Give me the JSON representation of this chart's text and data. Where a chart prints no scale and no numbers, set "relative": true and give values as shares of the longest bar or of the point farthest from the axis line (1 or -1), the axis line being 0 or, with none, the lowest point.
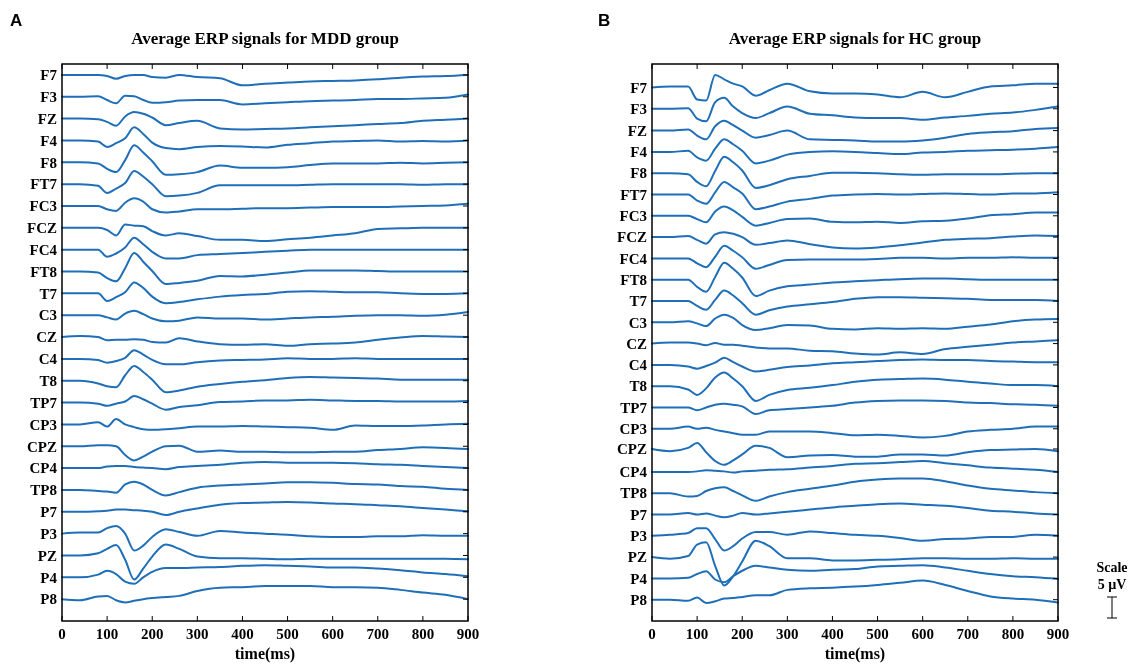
{
  "chart_data": [
    {
      "type": "line",
      "relative": true,
      "title": "Average ERP signals for MDD group",
      "xlabel": "time(ms)",
      "annotations": [
        "A"
      ],
      "x": [
        0,
        40,
        80,
        100,
        120,
        140,
        160,
        180,
        200,
        230,
        260,
        300,
        350,
        400,
        450,
        500,
        550,
        600,
        650,
        700,
        750,
        800,
        850,
        900
      ],
      "xlim": [
        0,
        900
      ],
      "xticks": [
        0,
        100,
        200,
        300,
        400,
        500,
        600,
        700,
        800,
        900
      ],
      "series": [
        {
          "name": "F7",
          "color": "#1f6fb8",
          "values": [
            1,
            1,
            1,
            0.998,
            0.993,
            0.998,
            1,
            1,
            0.996,
            0.995,
            1,
            0.996,
            0.994,
            0.981,
            0.984,
            0.986,
            0.988,
            0.989,
            0.99,
            0.992,
            0.995,
            0.997,
            0.998,
            1
          ]
        },
        {
          "name": "F3",
          "color": "#1f6fb8",
          "values": [
            0.96,
            0.96,
            0.961,
            0.954,
            0.948,
            0.962,
            0.961,
            0.954,
            0.949,
            0.95,
            0.953,
            0.954,
            0.954,
            0.946,
            0.948,
            0.95,
            0.952,
            0.953,
            0.954,
            0.956,
            0.956,
            0.957,
            0.958,
            0.964
          ]
        },
        {
          "name": "FZ",
          "color": "#1f6fb8",
          "values": [
            0.92,
            0.92,
            0.919,
            0.914,
            0.907,
            0.924,
            0.932,
            0.929,
            0.922,
            0.908,
            0.912,
            0.916,
            0.902,
            0.9,
            0.901,
            0.902,
            0.904,
            0.906,
            0.908,
            0.91,
            0.912,
            0.916,
            0.918,
            0.92
          ]
        },
        {
          "name": "F4",
          "color": "#1f6fb8",
          "values": [
            0.88,
            0.88,
            0.878,
            0.868,
            0.875,
            0.884,
            0.904,
            0.892,
            0.876,
            0.866,
            0.864,
            0.868,
            0.87,
            0.869,
            0.867,
            0.872,
            0.875,
            0.878,
            0.879,
            0.88,
            0.878,
            0.879,
            0.878,
            0.88
          ]
        },
        {
          "name": "F8",
          "color": "#1f6fb8",
          "values": [
            0.84,
            0.84,
            0.838,
            0.828,
            0.822,
            0.844,
            0.871,
            0.858,
            0.842,
            0.817,
            0.818,
            0.822,
            0.834,
            0.83,
            0.83,
            0.831,
            0.835,
            0.838,
            0.838,
            0.838,
            0.839,
            0.838,
            0.839,
            0.84
          ]
        },
        {
          "name": "FT7",
          "color": "#1f6fb8",
          "values": [
            0.8,
            0.8,
            0.797,
            0.784,
            0.792,
            0.802,
            0.824,
            0.814,
            0.8,
            0.778,
            0.779,
            0.784,
            0.798,
            0.798,
            0.798,
            0.798,
            0.799,
            0.8,
            0.8,
            0.8,
            0.8,
            0.799,
            0.8,
            0.8
          ]
        },
        {
          "name": "FC3",
          "color": "#1f6fb8",
          "values": [
            0.76,
            0.76,
            0.76,
            0.754,
            0.751,
            0.766,
            0.774,
            0.768,
            0.754,
            0.748,
            0.75,
            0.754,
            0.754,
            0.755,
            0.756,
            0.756,
            0.757,
            0.758,
            0.758,
            0.758,
            0.759,
            0.76,
            0.761,
            0.764
          ]
        },
        {
          "name": "FCZ",
          "color": "#1f6fb8",
          "values": [
            0.72,
            0.72,
            0.72,
            0.716,
            0.706,
            0.726,
            0.724,
            0.723,
            0.714,
            0.706,
            0.71,
            0.705,
            0.698,
            0.698,
            0.696,
            0.699,
            0.702,
            0.706,
            0.71,
            0.718,
            0.719,
            0.72,
            0.72,
            0.72
          ]
        },
        {
          "name": "FC4",
          "color": "#1f6fb8",
          "values": [
            0.68,
            0.68,
            0.68,
            0.667,
            0.673,
            0.684,
            0.702,
            0.69,
            0.676,
            0.664,
            0.664,
            0.67,
            0.672,
            0.674,
            0.676,
            0.678,
            0.68,
            0.68,
            0.68,
            0.68,
            0.68,
            0.68,
            0.68,
            0.68
          ]
        },
        {
          "name": "FT8",
          "color": "#1f6fb8",
          "values": [
            0.64,
            0.64,
            0.638,
            0.628,
            0.622,
            0.646,
            0.674,
            0.658,
            0.641,
            0.617,
            0.619,
            0.623,
            0.632,
            0.631,
            0.634,
            0.638,
            0.642,
            0.642,
            0.642,
            0.641,
            0.64,
            0.64,
            0.64,
            0.64
          ]
        },
        {
          "name": "T7",
          "color": "#1f6fb8",
          "values": [
            0.6,
            0.6,
            0.6,
            0.586,
            0.593,
            0.602,
            0.62,
            0.61,
            0.594,
            0.582,
            0.584,
            0.589,
            0.594,
            0.597,
            0.599,
            0.603,
            0.604,
            0.603,
            0.602,
            0.602,
            0.6,
            0.599,
            0.599,
            0.6
          ]
        },
        {
          "name": "C3",
          "color": "#1f6fb8",
          "values": [
            0.56,
            0.56,
            0.56,
            0.556,
            0.552,
            0.563,
            0.568,
            0.562,
            0.554,
            0.549,
            0.55,
            0.556,
            0.554,
            0.554,
            0.552,
            0.554,
            0.556,
            0.557,
            0.559,
            0.56,
            0.56,
            0.559,
            0.561,
            0.566
          ]
        },
        {
          "name": "CZ",
          "color": "#1f6fb8",
          "values": [
            0.52,
            0.522,
            0.52,
            0.514,
            0.515,
            0.515,
            0.516,
            0.515,
            0.511,
            0.51,
            0.518,
            0.512,
            0.507,
            0.506,
            0.507,
            0.504,
            0.507,
            0.508,
            0.51,
            0.515,
            0.519,
            0.522,
            0.521,
            0.52
          ]
        },
        {
          "name": "C4",
          "color": "#1f6fb8",
          "values": [
            0.48,
            0.48,
            0.478,
            0.473,
            0.476,
            0.482,
            0.496,
            0.488,
            0.478,
            0.47,
            0.47,
            0.474,
            0.477,
            0.478,
            0.479,
            0.481,
            0.48,
            0.48,
            0.481,
            0.48,
            0.48,
            0.48,
            0.48,
            0.48
          ]
        },
        {
          "name": "T8",
          "color": "#1f6fb8",
          "values": [
            0.44,
            0.44,
            0.435,
            0.43,
            0.428,
            0.45,
            0.467,
            0.456,
            0.442,
            0.419,
            0.422,
            0.429,
            0.434,
            0.438,
            0.441,
            0.445,
            0.447,
            0.446,
            0.445,
            0.444,
            0.442,
            0.442,
            0.442,
            0.442
          ]
        },
        {
          "name": "TP7",
          "color": "#1f6fb8",
          "values": [
            0.4,
            0.4,
            0.398,
            0.394,
            0.398,
            0.402,
            0.412,
            0.406,
            0.398,
            0.387,
            0.392,
            0.395,
            0.401,
            0.402,
            0.404,
            0.404,
            0.405,
            0.404,
            0.403,
            0.403,
            0.402,
            0.402,
            0.402,
            0.403
          ]
        },
        {
          "name": "CP3",
          "color": "#1f6fb8",
          "values": [
            0.36,
            0.36,
            0.364,
            0.356,
            0.37,
            0.36,
            0.355,
            0.351,
            0.35,
            0.351,
            0.353,
            0.356,
            0.356,
            0.357,
            0.356,
            0.355,
            0.354,
            0.35,
            0.358,
            0.357,
            0.357,
            0.358,
            0.36,
            0.361
          ]
        },
        {
          "name": "CPZ",
          "color": "#1f6fb8",
          "values": [
            0.32,
            0.32,
            0.322,
            0.322,
            0.32,
            0.304,
            0.294,
            0.301,
            0.31,
            0.32,
            0.321,
            0.31,
            0.312,
            0.31,
            0.31,
            0.309,
            0.309,
            0.31,
            0.31,
            0.313,
            0.315,
            0.318,
            0.317,
            0.315
          ]
        },
        {
          "name": "CP4",
          "color": "#1f6fb8",
          "values": [
            0.28,
            0.28,
            0.28,
            0.283,
            0.284,
            0.284,
            0.282,
            0.281,
            0.28,
            0.278,
            0.282,
            0.284,
            0.286,
            0.29,
            0.291,
            0.29,
            0.29,
            0.29,
            0.289,
            0.287,
            0.286,
            0.284,
            0.282,
            0.28
          ]
        },
        {
          "name": "TP8",
          "color": "#1f6fb8",
          "values": [
            0.24,
            0.24,
            0.238,
            0.237,
            0.235,
            0.25,
            0.255,
            0.25,
            0.24,
            0.23,
            0.236,
            0.244,
            0.248,
            0.25,
            0.252,
            0.254,
            0.254,
            0.253,
            0.251,
            0.25,
            0.247,
            0.246,
            0.242,
            0.24
          ]
        },
        {
          "name": "P7",
          "color": "#1f6fb8",
          "values": [
            0.2,
            0.2,
            0.201,
            0.202,
            0.204,
            0.204,
            0.203,
            0.202,
            0.2,
            0.194,
            0.2,
            0.206,
            0.213,
            0.216,
            0.217,
            0.218,
            0.217,
            0.215,
            0.214,
            0.212,
            0.21,
            0.207,
            0.204,
            0.201
          ]
        },
        {
          "name": "P3",
          "color": "#1f6fb8",
          "values": [
            0.16,
            0.162,
            0.162,
            0.17,
            0.174,
            0.16,
            0.129,
            0.138,
            0.154,
            0.168,
            0.163,
            0.156,
            0.165,
            0.162,
            0.16,
            0.158,
            0.155,
            0.154,
            0.154,
            0.155,
            0.155,
            0.157,
            0.156,
            0.156
          ]
        },
        {
          "name": "PZ",
          "color": "#1f6fb8",
          "values": [
            0.12,
            0.12,
            0.124,
            0.132,
            0.139,
            0.112,
            0.076,
            0.096,
            0.118,
            0.14,
            0.132,
            0.118,
            0.115,
            0.115,
            0.114,
            0.113,
            0.114,
            0.114,
            0.114,
            0.114,
            0.114,
            0.114,
            0.114,
            0.113
          ]
        },
        {
          "name": "P4",
          "color": "#1f6fb8",
          "values": [
            0.08,
            0.08,
            0.085,
            0.092,
            0.086,
            0.072,
            0.068,
            0.08,
            0.09,
            0.097,
            0.097,
            0.098,
            0.099,
            0.101,
            0.102,
            0.101,
            0.1,
            0.098,
            0.098,
            0.096,
            0.093,
            0.089,
            0.086,
            0.082
          ]
        },
        {
          "name": "P8",
          "color": "#1f6fb8",
          "values": [
            0.04,
            0.038,
            0.045,
            0.046,
            0.038,
            0.034,
            0.037,
            0.04,
            0.042,
            0.044,
            0.046,
            0.055,
            0.061,
            0.062,
            0.064,
            0.064,
            0.064,
            0.062,
            0.062,
            0.061,
            0.057,
            0.052,
            0.048,
            0.04
          ]
        }
      ]
    },
    {
      "type": "line",
      "relative": true,
      "title": "Average ERP signals for HC group",
      "xlabel": "time(ms)",
      "annotations": [
        "B",
        "Scale",
        "5 µV"
      ],
      "x": [
        0,
        40,
        80,
        100,
        120,
        140,
        160,
        180,
        200,
        230,
        260,
        300,
        350,
        400,
        450,
        500,
        550,
        600,
        650,
        700,
        750,
        800,
        850,
        900
      ],
      "xlim": [
        0,
        900
      ],
      "xticks": [
        0,
        100,
        200,
        300,
        400,
        500,
        600,
        700,
        800,
        900
      ],
      "series": [
        {
          "name": "F7",
          "color": "#1f6fb8",
          "values": [
            0.977,
            0.979,
            0.979,
            0.955,
            0.953,
            1,
            0.992,
            0.984,
            0.979,
            0.962,
            0.972,
            0.984,
            0.97,
            0.966,
            0.966,
            0.964,
            0.959,
            0.969,
            0.959,
            0.969,
            0.979,
            0.981,
            0.984,
            0.984
          ]
        },
        {
          "name": "F3",
          "color": "#1f6fb8",
          "values": [
            0.938,
            0.938,
            0.939,
            0.92,
            0.915,
            0.95,
            0.958,
            0.942,
            0.93,
            0.921,
            0.93,
            0.942,
            0.929,
            0.926,
            0.922,
            0.921,
            0.921,
            0.918,
            0.922,
            0.925,
            0.929,
            0.931,
            0.936,
            0.942
          ]
        },
        {
          "name": "FZ",
          "color": "#1f6fb8",
          "values": [
            0.898,
            0.898,
            0.9,
            0.889,
            0.882,
            0.906,
            0.916,
            0.908,
            0.898,
            0.885,
            0.89,
            0.898,
            0.882,
            0.881,
            0.88,
            0.878,
            0.878,
            0.88,
            0.885,
            0.892,
            0.895,
            0.897,
            0.901,
            0.903
          ]
        },
        {
          "name": "F4",
          "color": "#1f6fb8",
          "values": [
            0.859,
            0.859,
            0.861,
            0.849,
            0.843,
            0.865,
            0.882,
            0.873,
            0.861,
            0.838,
            0.843,
            0.854,
            0.859,
            0.86,
            0.859,
            0.857,
            0.855,
            0.858,
            0.859,
            0.861,
            0.862,
            0.863,
            0.865,
            0.868
          ]
        },
        {
          "name": "F8",
          "color": "#1f6fb8",
          "values": [
            0.82,
            0.82,
            0.818,
            0.804,
            0.796,
            0.824,
            0.85,
            0.84,
            0.825,
            0.793,
            0.798,
            0.809,
            0.815,
            0.821,
            0.821,
            0.82,
            0.818,
            0.817,
            0.818,
            0.818,
            0.818,
            0.819,
            0.82,
            0.82
          ]
        },
        {
          "name": "FT7",
          "color": "#1f6fb8",
          "values": [
            0.781,
            0.781,
            0.781,
            0.77,
            0.764,
            0.785,
            0.804,
            0.794,
            0.783,
            0.754,
            0.759,
            0.768,
            0.773,
            0.779,
            0.781,
            0.782,
            0.781,
            0.782,
            0.783,
            0.782,
            0.781,
            0.783,
            0.783,
            0.785
          ]
        },
        {
          "name": "FC3",
          "color": "#1f6fb8",
          "values": [
            0.742,
            0.742,
            0.742,
            0.736,
            0.73,
            0.75,
            0.759,
            0.752,
            0.74,
            0.724,
            0.729,
            0.736,
            0.737,
            0.731,
            0.73,
            0.731,
            0.729,
            0.732,
            0.733,
            0.737,
            0.743,
            0.745,
            0.748,
            0.748
          ]
        },
        {
          "name": "FCZ",
          "color": "#1f6fb8",
          "values": [
            0.703,
            0.703,
            0.705,
            0.698,
            0.691,
            0.708,
            0.712,
            0.709,
            0.703,
            0.689,
            0.692,
            0.697,
            0.69,
            0.684,
            0.682,
            0.684,
            0.688,
            0.693,
            0.698,
            0.7,
            0.701,
            0.704,
            0.706,
            0.705
          ]
        },
        {
          "name": "FC4",
          "color": "#1f6fb8",
          "values": [
            0.664,
            0.664,
            0.664,
            0.655,
            0.648,
            0.667,
            0.687,
            0.678,
            0.666,
            0.645,
            0.652,
            0.661,
            0.662,
            0.662,
            0.662,
            0.663,
            0.665,
            0.665,
            0.664,
            0.665,
            0.665,
            0.666,
            0.665,
            0.665
          ]
        },
        {
          "name": "FT8",
          "color": "#1f6fb8",
          "values": [
            0.625,
            0.625,
            0.625,
            0.612,
            0.603,
            0.63,
            0.656,
            0.645,
            0.629,
            0.595,
            0.605,
            0.613,
            0.616,
            0.62,
            0.622,
            0.624,
            0.626,
            0.627,
            0.627,
            0.626,
            0.625,
            0.625,
            0.625,
            0.625
          ]
        },
        {
          "name": "T7",
          "color": "#1f6fb8",
          "values": [
            0.586,
            0.586,
            0.586,
            0.577,
            0.57,
            0.588,
            0.605,
            0.596,
            0.582,
            0.561,
            0.569,
            0.576,
            0.58,
            0.584,
            0.59,
            0.593,
            0.593,
            0.592,
            0.591,
            0.59,
            0.588,
            0.588,
            0.588,
            0.586
          ]
        },
        {
          "name": "C3",
          "color": "#1f6fb8",
          "values": [
            0.547,
            0.547,
            0.549,
            0.545,
            0.54,
            0.554,
            0.561,
            0.555,
            0.542,
            0.533,
            0.536,
            0.542,
            0.541,
            0.535,
            0.534,
            0.536,
            0.535,
            0.536,
            0.535,
            0.539,
            0.543,
            0.549,
            0.552,
            0.553
          ]
        },
        {
          "name": "CZ",
          "color": "#1f6fb8",
          "values": [
            0.508,
            0.51,
            0.51,
            0.508,
            0.505,
            0.509,
            0.506,
            0.506,
            0.504,
            0.501,
            0.499,
            0.499,
            0.495,
            0.494,
            0.49,
            0.488,
            0.492,
            0.489,
            0.498,
            0.502,
            0.506,
            0.51,
            0.512,
            0.514
          ]
        },
        {
          "name": "C4",
          "color": "#1f6fb8",
          "values": [
            0.469,
            0.469,
            0.466,
            0.462,
            0.467,
            0.473,
            0.482,
            0.474,
            0.466,
            0.457,
            0.46,
            0.465,
            0.468,
            0.472,
            0.474,
            0.476,
            0.478,
            0.479,
            0.478,
            0.478,
            0.476,
            0.475,
            0.474,
            0.474
          ]
        },
        {
          "name": "T8",
          "color": "#1f6fb8",
          "values": [
            0.43,
            0.43,
            0.424,
            0.414,
            0.426,
            0.446,
            0.455,
            0.444,
            0.43,
            0.403,
            0.414,
            0.423,
            0.427,
            0.432,
            0.438,
            0.442,
            0.443,
            0.444,
            0.442,
            0.438,
            0.435,
            0.432,
            0.432,
            0.43
          ]
        },
        {
          "name": "TP7",
          "color": "#1f6fb8",
          "values": [
            0.391,
            0.391,
            0.391,
            0.386,
            0.391,
            0.396,
            0.398,
            0.396,
            0.393,
            0.379,
            0.386,
            0.388,
            0.391,
            0.394,
            0.4,
            0.403,
            0.404,
            0.404,
            0.403,
            0.4,
            0.399,
            0.397,
            0.396,
            0.394
          ]
        },
        {
          "name": "CP3",
          "color": "#1f6fb8",
          "values": [
            0.352,
            0.352,
            0.356,
            0.352,
            0.354,
            0.35,
            0.347,
            0.344,
            0.341,
            0.341,
            0.347,
            0.347,
            0.347,
            0.344,
            0.34,
            0.341,
            0.339,
            0.336,
            0.339,
            0.347,
            0.35,
            0.352,
            0.356,
            0.356
          ]
        },
        {
          "name": "CPZ",
          "color": "#1f6fb8",
          "values": [
            0.315,
            0.311,
            0.317,
            0.326,
            0.309,
            0.293,
            0.286,
            0.294,
            0.305,
            0.321,
            0.317,
            0.3,
            0.303,
            0.304,
            0.301,
            0.301,
            0.305,
            0.305,
            0.303,
            0.309,
            0.313,
            0.314,
            0.315,
            0.311
          ]
        },
        {
          "name": "CP4",
          "color": "#1f6fb8",
          "values": [
            0.273,
            0.273,
            0.273,
            0.274,
            0.276,
            0.275,
            0.274,
            0.272,
            0.274,
            0.275,
            0.277,
            0.278,
            0.281,
            0.284,
            0.288,
            0.289,
            0.291,
            0.293,
            0.289,
            0.285,
            0.281,
            0.279,
            0.277,
            0.273
          ]
        },
        {
          "name": "TP8",
          "color": "#1f6fb8",
          "values": [
            0.234,
            0.234,
            0.228,
            0.229,
            0.238,
            0.243,
            0.245,
            0.238,
            0.23,
            0.22,
            0.228,
            0.236,
            0.242,
            0.248,
            0.255,
            0.259,
            0.261,
            0.261,
            0.256,
            0.248,
            0.242,
            0.239,
            0.236,
            0.234
          ]
        },
        {
          "name": "P7",
          "color": "#1f6fb8",
          "values": [
            0.195,
            0.195,
            0.198,
            0.195,
            0.197,
            0.193,
            0.19,
            0.193,
            0.198,
            0.195,
            0.197,
            0.2,
            0.204,
            0.208,
            0.211,
            0.214,
            0.215,
            0.213,
            0.211,
            0.207,
            0.202,
            0.2,
            0.197,
            0.195
          ]
        },
        {
          "name": "P3",
          "color": "#1f6fb8",
          "values": [
            0.156,
            0.158,
            0.161,
            0.17,
            0.17,
            0.15,
            0.129,
            0.137,
            0.151,
            0.163,
            0.163,
            0.158,
            0.164,
            0.161,
            0.158,
            0.156,
            0.152,
            0.147,
            0.15,
            0.151,
            0.154,
            0.154,
            0.158,
            0.156
          ]
        },
        {
          "name": "PZ",
          "color": "#1f6fb8",
          "values": [
            0.117,
            0.114,
            0.119,
            0.14,
            0.144,
            0.101,
            0.065,
            0.082,
            0.109,
            0.147,
            0.137,
            0.115,
            0.115,
            0.111,
            0.111,
            0.112,
            0.113,
            0.115,
            0.115,
            0.114,
            0.114,
            0.115,
            0.114,
            0.114
          ]
        },
        {
          "name": "P4",
          "color": "#1f6fb8",
          "values": [
            0.078,
            0.078,
            0.079,
            0.086,
            0.091,
            0.076,
            0.071,
            0.082,
            0.092,
            0.101,
            0.098,
            0.094,
            0.092,
            0.094,
            0.095,
            0.1,
            0.101,
            0.102,
            0.098,
            0.092,
            0.086,
            0.082,
            0.08,
            0.077
          ]
        },
        {
          "name": "P8",
          "color": "#1f6fb8",
          "values": [
            0.039,
            0.039,
            0.037,
            0.043,
            0.033,
            0.036,
            0.041,
            0.042,
            0.044,
            0.047,
            0.047,
            0.057,
            0.06,
            0.061,
            0.063,
            0.066,
            0.07,
            0.074,
            0.066,
            0.055,
            0.045,
            0.041,
            0.039,
            0.034
          ]
        }
      ]
    }
  ]
}
